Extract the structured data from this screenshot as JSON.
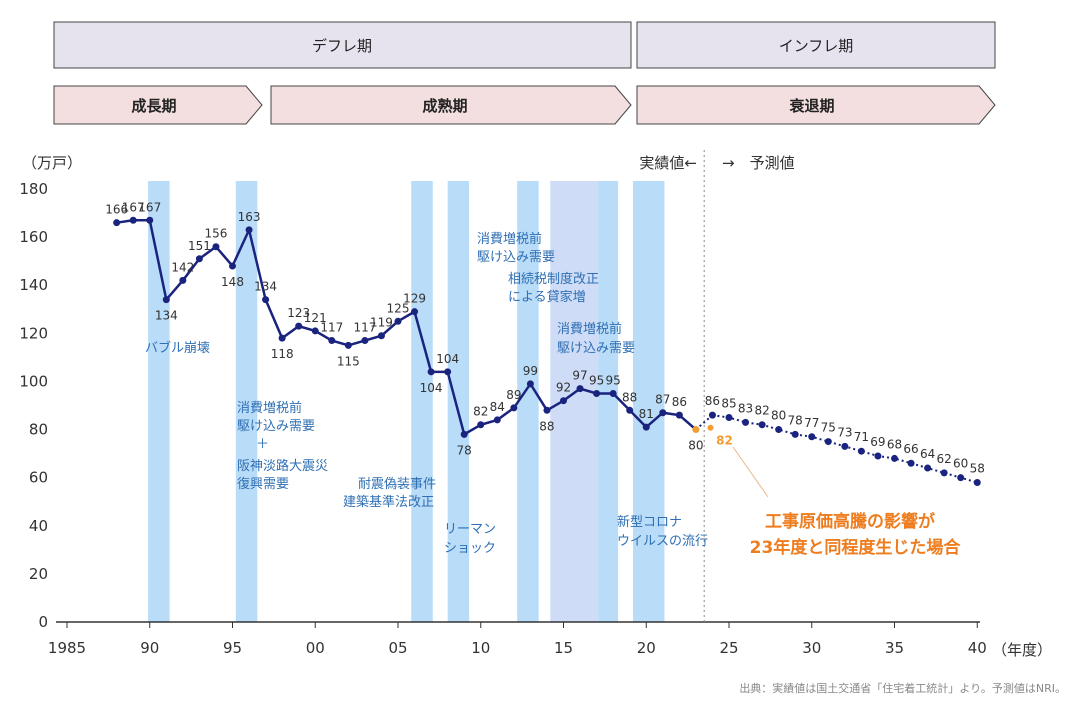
{
  "header": {
    "phases": [
      "デフレ期",
      "インフレ期"
    ],
    "stages": [
      "成長期",
      "成熟期",
      "衰退期"
    ]
  },
  "chart_data": {
    "type": "line",
    "ylabel": "（万戸）",
    "xlabel": "（年度）",
    "ylim": [
      0,
      180
    ],
    "xlim": [
      1985,
      2040
    ],
    "yticks": [
      0,
      20,
      40,
      60,
      80,
      100,
      120,
      140,
      160,
      180
    ],
    "xticks": [
      {
        "v": 1985,
        "t": "1985"
      },
      {
        "v": 1990,
        "t": "90"
      },
      {
        "v": 1995,
        "t": "95"
      },
      {
        "v": 2000,
        "t": "00"
      },
      {
        "v": 2005,
        "t": "05"
      },
      {
        "v": 2010,
        "t": "10"
      },
      {
        "v": 2015,
        "t": "15"
      },
      {
        "v": 2020,
        "t": "20"
      },
      {
        "v": 2025,
        "t": "25"
      },
      {
        "v": 2030,
        "t": "30"
      },
      {
        "v": 2035,
        "t": "35"
      },
      {
        "v": 2040,
        "t": "40"
      }
    ],
    "divider_label_left": "実績値←",
    "divider_label_right": "→　予測値",
    "series": [
      {
        "name": "実績値",
        "color": "#1a237e",
        "x": [
          1988,
          1989,
          1990,
          1991,
          1992,
          1993,
          1994,
          1995,
          1996,
          1997,
          1998,
          1999,
          2000,
          2001,
          2002,
          2003,
          2004,
          2005,
          2006,
          2007,
          2008,
          2009,
          2010,
          2011,
          2012,
          2013,
          2014,
          2015,
          2016,
          2017,
          2018,
          2019,
          2020,
          2021,
          2022,
          2023
        ],
        "values": [
          166,
          167,
          167,
          134,
          142,
          151,
          156,
          148,
          163,
          134,
          118,
          123,
          121,
          117,
          115,
          117,
          119,
          125,
          129,
          104,
          104,
          78,
          82,
          84,
          89,
          99,
          88,
          92,
          97,
          95,
          95,
          88,
          81,
          87,
          86,
          80
        ]
      },
      {
        "name": "予測値",
        "color": "#1a237e",
        "dotted": true,
        "x": [
          2024,
          2025,
          2026,
          2027,
          2028,
          2029,
          2030,
          2031,
          2032,
          2033,
          2034,
          2035,
          2036,
          2037,
          2038,
          2039,
          2040
        ],
        "values": [
          86,
          85,
          83,
          82,
          80,
          78,
          77,
          75,
          73,
          71,
          69,
          68,
          66,
          64,
          62,
          60,
          58
        ]
      },
      {
        "name": "工事原価高騰の影響が23年度と同程度生じた場合",
        "color": "#f39c33",
        "x": [
          2024
        ],
        "values": [
          82
        ]
      }
    ],
    "bands": [
      [
        1989.9,
        1991.2
      ],
      [
        1995.2,
        1996.5
      ],
      [
        2005.8,
        2007.1
      ],
      [
        2008,
        2009.3
      ],
      [
        2012.2,
        2013.5
      ],
      [
        2014.2,
        2017.1
      ],
      [
        2017.1,
        2018.3
      ],
      [
        2019.2,
        2021.1
      ]
    ],
    "annotations": {
      "bubble": "バブル崩壊",
      "tax1_a": "消費増税前",
      "tax1_b": "駆け込み需要",
      "plus": "＋",
      "quake_a": "阪神淡路大震災",
      "quake_b": "復興需要",
      "fraud_a": "耐震偽装事件",
      "fraud_b": "建築基準法改正",
      "lehman_a": "リーマン",
      "lehman_b": "ショック",
      "tax2_a": "消費増税前",
      "tax2_b": "駆け込み需要",
      "inherit_a": "相続税制度改正",
      "inherit_b": "による貸家増",
      "tax3_a": "消費増税前",
      "tax3_b": "駆け込み需要",
      "covid_a": "新型コロナ",
      "covid_b": "ウイルスの流行",
      "cost_a": "工事原価高騰の影響が",
      "cost_b": "23年度と同程度生じた場合"
    }
  },
  "source": "出典：実績値は国土交通省「住宅着工統計」より。予測値はNRI。"
}
